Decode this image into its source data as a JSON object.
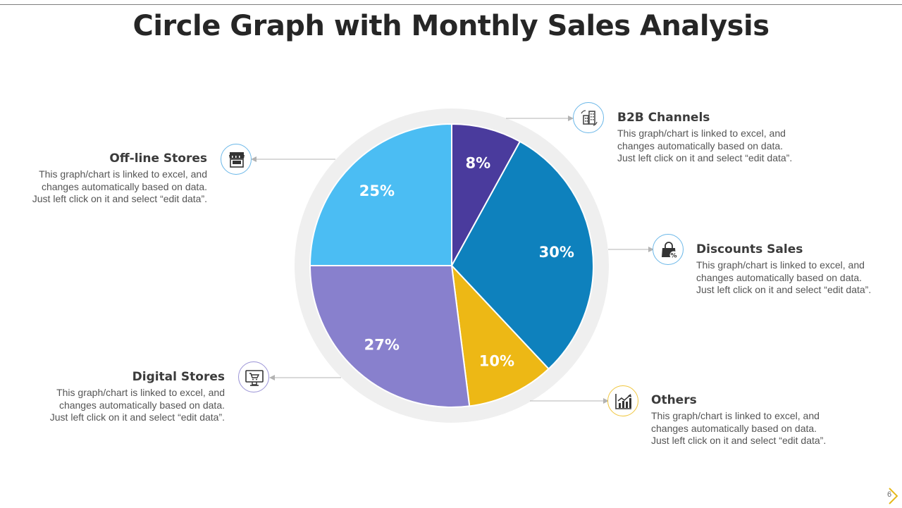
{
  "title": "Circle Graph with Monthly Sales Analysis",
  "page_number": "6",
  "description_lines": [
    "This graph/chart is linked to excel, and",
    "changes automatically based on data.",
    "Just left click on it and select “edit data”."
  ],
  "callouts": {
    "b2b": {
      "heading": "B2B Channels",
      "icon": "buildings-icon"
    },
    "discounts": {
      "heading": "Discounts  Sales",
      "icon": "shopping-bag-percent-icon"
    },
    "others": {
      "heading": "Others",
      "icon": "bar-chart-growth-icon"
    },
    "digital": {
      "heading": "Digital  Stores",
      "icon": "monitor-cart-icon"
    },
    "offline": {
      "heading": "Off-line Stores",
      "icon": "storefront-icon"
    }
  },
  "colors": {
    "ring": "#efefef",
    "b2b": "#4a3b9d",
    "discounts": "#0e81bd",
    "others": "#edb815",
    "digital": "#8880cd",
    "offline": "#4bbdf3",
    "icon_border_default": "#6ab7e8",
    "icon_border_others": "#f0c63d",
    "icon_border_digital": "#9a93d6",
    "page_marker": "#e5b81a"
  },
  "chart_data": {
    "type": "pie",
    "start_angle_deg": 0,
    "direction": "clockwise",
    "categories": [
      "B2B Channels",
      "Discounts  Sales",
      "Others",
      "Digital  Stores",
      "Off-line Stores"
    ],
    "values": [
      8,
      30,
      10,
      27,
      25
    ],
    "labels": [
      "8%",
      "30%",
      "10%",
      "27%",
      "25%"
    ],
    "colors": [
      "#4a3b9d",
      "#0e81bd",
      "#edb815",
      "#8880cd",
      "#4bbdf3"
    ]
  }
}
